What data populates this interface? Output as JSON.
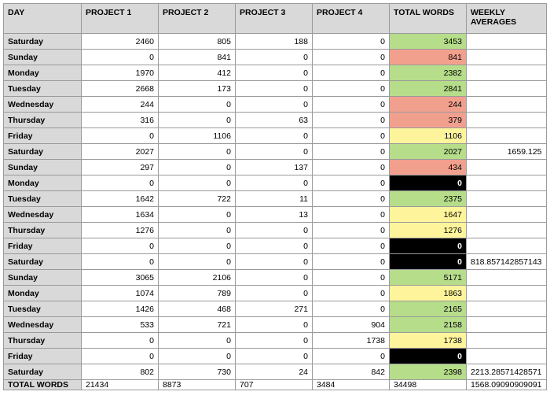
{
  "headers": [
    "DAY",
    "PROJECT 1",
    "PROJECT 2",
    "PROJECT 3",
    "PROJECT  4",
    "TOTAL WORDS",
    "WEEKLY AVERAGES"
  ],
  "rows": [
    {
      "day": "Saturday",
      "p1": "2460",
      "p2": "805",
      "p3": "188",
      "p4": "0",
      "total": "3453",
      "status": "green",
      "avg": ""
    },
    {
      "day": "Sunday",
      "p1": "0",
      "p2": "841",
      "p3": "0",
      "p4": "0",
      "total": "841",
      "status": "red",
      "avg": ""
    },
    {
      "day": "Monday",
      "p1": "1970",
      "p2": "412",
      "p3": "0",
      "p4": "0",
      "total": "2382",
      "status": "green",
      "avg": ""
    },
    {
      "day": "Tuesday",
      "p1": "2668",
      "p2": "173",
      "p3": "0",
      "p4": "0",
      "total": "2841",
      "status": "green",
      "avg": ""
    },
    {
      "day": "Wednesday",
      "p1": "244",
      "p2": "0",
      "p3": "0",
      "p4": "0",
      "total": "244",
      "status": "red",
      "avg": ""
    },
    {
      "day": "Thursday",
      "p1": "316",
      "p2": "0",
      "p3": "63",
      "p4": "0",
      "total": "379",
      "status": "red",
      "avg": ""
    },
    {
      "day": "Friday",
      "p1": "0",
      "p2": "1106",
      "p3": "0",
      "p4": "0",
      "total": "1106",
      "status": "yellow",
      "avg": ""
    },
    {
      "day": "Saturday",
      "p1": "2027",
      "p2": "0",
      "p3": "0",
      "p4": "0",
      "total": "2027",
      "status": "green",
      "avg": "1659.125"
    },
    {
      "day": "Sunday",
      "p1": "297",
      "p2": "0",
      "p3": "137",
      "p4": "0",
      "total": "434",
      "status": "red",
      "avg": ""
    },
    {
      "day": "Monday",
      "p1": "0",
      "p2": "0",
      "p3": "0",
      "p4": "0",
      "total": "0",
      "status": "black",
      "avg": ""
    },
    {
      "day": "Tuesday",
      "p1": "1642",
      "p2": "722",
      "p3": "11",
      "p4": "0",
      "total": "2375",
      "status": "green",
      "avg": ""
    },
    {
      "day": "Wednesday",
      "p1": "1634",
      "p2": "0",
      "p3": "13",
      "p4": "0",
      "total": "1647",
      "status": "yellow",
      "avg": ""
    },
    {
      "day": "Thursday",
      "p1": "1276",
      "p2": "0",
      "p3": "0",
      "p4": "0",
      "total": "1276",
      "status": "yellow",
      "avg": ""
    },
    {
      "day": "Friday",
      "p1": "0",
      "p2": "0",
      "p3": "0",
      "p4": "0",
      "total": "0",
      "status": "black",
      "avg": ""
    },
    {
      "day": "Saturday",
      "p1": "0",
      "p2": "0",
      "p3": "0",
      "p4": "0",
      "total": "0",
      "status": "black",
      "avg": "818.857142857143"
    },
    {
      "day": "Sunday",
      "p1": "3065",
      "p2": "2106",
      "p3": "0",
      "p4": "0",
      "total": "5171",
      "status": "green",
      "avg": ""
    },
    {
      "day": "Monday",
      "p1": "1074",
      "p2": "789",
      "p3": "0",
      "p4": "0",
      "total": "1863",
      "status": "yellow",
      "avg": ""
    },
    {
      "day": "Tuesday",
      "p1": "1426",
      "p2": "468",
      "p3": "271",
      "p4": "0",
      "total": "2165",
      "status": "green",
      "avg": ""
    },
    {
      "day": "Wednesday",
      "p1": "533",
      "p2": "721",
      "p3": "0",
      "p4": "904",
      "total": "2158",
      "status": "green",
      "avg": ""
    },
    {
      "day": "Thursday",
      "p1": "0",
      "p2": "0",
      "p3": "0",
      "p4": "1738",
      "total": "1738",
      "status": "yellow",
      "avg": ""
    },
    {
      "day": "Friday",
      "p1": "0",
      "p2": "0",
      "p3": "0",
      "p4": "0",
      "total": "0",
      "status": "black",
      "avg": ""
    },
    {
      "day": "Saturday",
      "p1": "802",
      "p2": "730",
      "p3": "24",
      "p4": "842",
      "total": "2398",
      "status": "green",
      "avg": "2213.28571428571"
    }
  ],
  "totals": {
    "label": "TOTAL WORDS",
    "p1": "21434",
    "p2": "8873",
    "p3": "707",
    "p4": "3484",
    "total": "34498",
    "avg": "1568.09090909091"
  },
  "colors": {
    "green": "#b6dd8a",
    "red": "#f2a08e",
    "yellow": "#fdf49b",
    "black": "#000000",
    "header": "#d9d9d9"
  }
}
